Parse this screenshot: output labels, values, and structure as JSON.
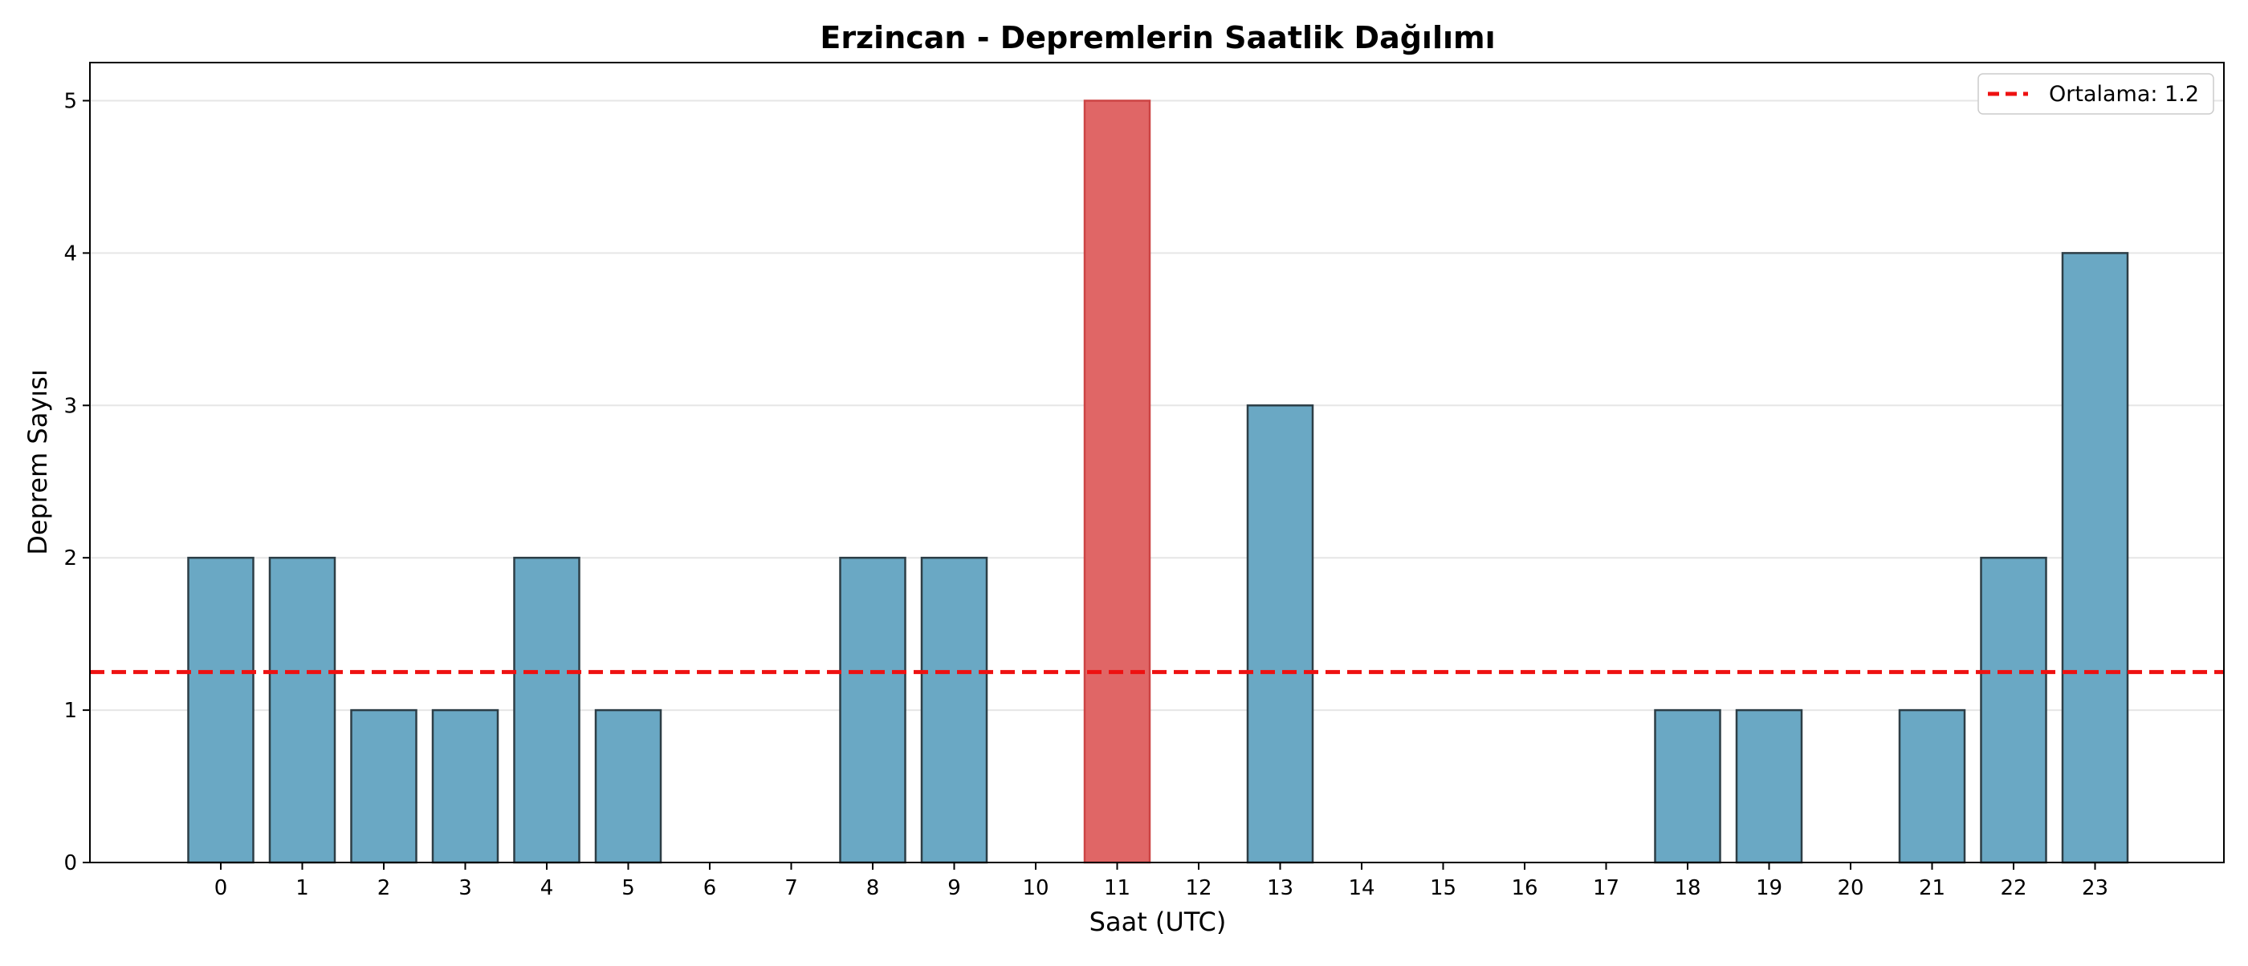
{
  "chart_data": {
    "type": "bar",
    "title": "Erzincan - Depremlerin Saatlik Dağılımı",
    "xlabel": "Saat (UTC)",
    "ylabel": "Deprem Sayısı",
    "categories": [
      "0",
      "1",
      "2",
      "3",
      "4",
      "5",
      "6",
      "7",
      "8",
      "9",
      "10",
      "11",
      "12",
      "13",
      "14",
      "15",
      "16",
      "17",
      "18",
      "19",
      "20",
      "21",
      "22",
      "23"
    ],
    "values": [
      2,
      2,
      1,
      1,
      2,
      1,
      0,
      0,
      2,
      2,
      0,
      5,
      0,
      3,
      0,
      0,
      0,
      0,
      1,
      1,
      0,
      1,
      2,
      4
    ],
    "highlight_index": 11,
    "ylim": [
      0,
      5.25
    ],
    "yticks": [
      0,
      1,
      2,
      3,
      4,
      5
    ],
    "grid": "horizontal",
    "mean_line": {
      "value": 1.25,
      "label": "Ortalama: 1.2"
    },
    "legend_position": "top-right",
    "colors": {
      "bar": "#6aa8c4",
      "bar_edge": "#2d3e46",
      "highlight": "#e06666",
      "highlight_edge": "#cc4444",
      "mean_line": "#ee1111",
      "grid": "#e6e6e6"
    }
  }
}
